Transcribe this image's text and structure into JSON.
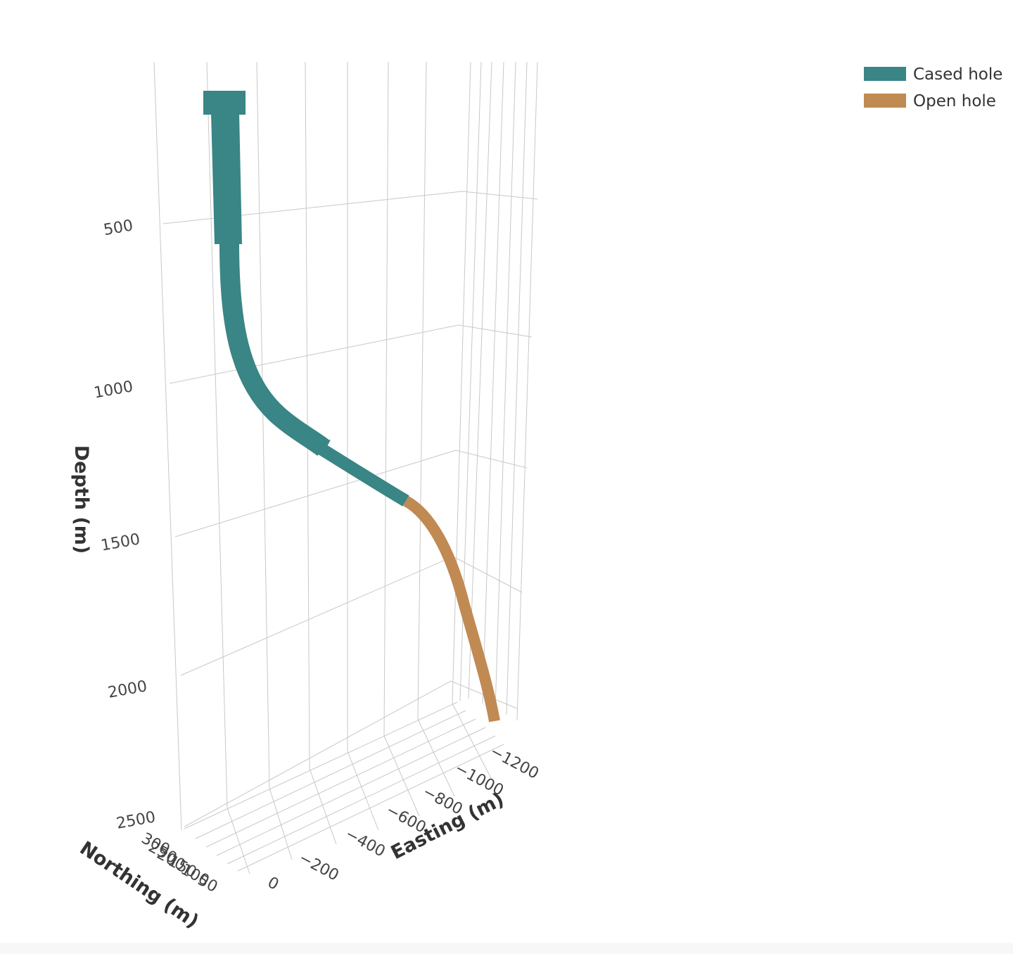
{
  "chart_data": {
    "type": "line",
    "title": "",
    "axes": {
      "x": {
        "label": "Easting (m)",
        "ticks": [
          "0",
          "−200",
          "−400",
          "−600",
          "−800",
          "−1000",
          "−1200"
        ],
        "range": [
          0,
          -1300
        ]
      },
      "y": {
        "label": "Northing (m)",
        "ticks": [
          "50",
          "100",
          "150",
          "200",
          "250",
          "300"
        ],
        "range": [
          0,
          320
        ]
      },
      "z": {
        "label": "Depth (m)",
        "ticks": [
          "500",
          "1000",
          "1500",
          "2000",
          "2500"
        ],
        "range": [
          0,
          2700
        ],
        "reversed": true
      }
    },
    "grid": true,
    "legend_position": "top-right",
    "series": [
      {
        "name": "Cased hole",
        "color": "#3a8585",
        "points": [
          {
            "x": 0,
            "y": 0,
            "z": 0
          },
          {
            "x": -10,
            "y": 20,
            "z": 300
          },
          {
            "x": -30,
            "y": 40,
            "z": 600
          },
          {
            "x": -120,
            "y": 70,
            "z": 900
          },
          {
            "x": -300,
            "y": 100,
            "z": 1100
          },
          {
            "x": -520,
            "y": 140,
            "z": 1200
          },
          {
            "x": -800,
            "y": 180,
            "z": 1300
          }
        ]
      },
      {
        "name": "Open hole",
        "color": "#c08a52",
        "points": [
          {
            "x": -800,
            "y": 180,
            "z": 1300
          },
          {
            "x": -950,
            "y": 210,
            "z": 1500
          },
          {
            "x": -1080,
            "y": 240,
            "z": 1800
          },
          {
            "x": -1200,
            "y": 270,
            "z": 2200
          }
        ]
      }
    ]
  }
}
